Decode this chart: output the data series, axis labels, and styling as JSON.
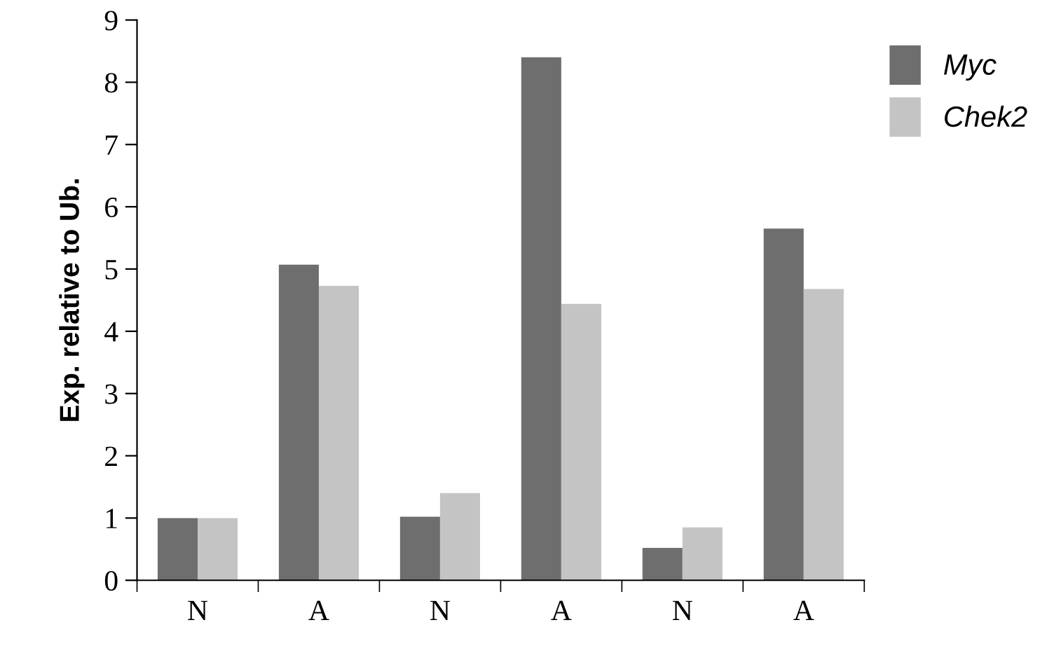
{
  "chart_data": {
    "type": "bar",
    "ylabel": "Exp. relative to Ub.",
    "categories": [
      "N",
      "A",
      "N",
      "A",
      "N",
      "A"
    ],
    "series": [
      {
        "name": "Myc",
        "color": "#6e6e6e",
        "values": [
          1.0,
          5.07,
          1.02,
          8.4,
          0.52,
          5.65
        ]
      },
      {
        "name": "Chek2",
        "color": "#c4c4c4",
        "values": [
          1.0,
          4.73,
          1.4,
          4.44,
          0.85,
          4.68
        ]
      }
    ],
    "ylim": [
      0,
      9
    ],
    "yticks": [
      0,
      1,
      2,
      3,
      4,
      5,
      6,
      7,
      8,
      9
    ],
    "grid": false,
    "legend": "top right"
  }
}
